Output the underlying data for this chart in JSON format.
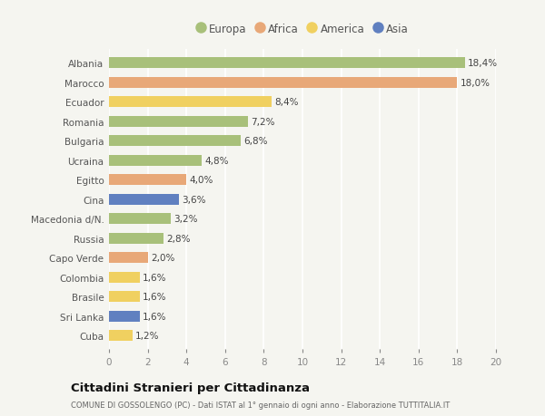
{
  "categories": [
    "Albania",
    "Marocco",
    "Ecuador",
    "Romania",
    "Bulgaria",
    "Ucraina",
    "Egitto",
    "Cina",
    "Macedonia d/N.",
    "Russia",
    "Capo Verde",
    "Colombia",
    "Brasile",
    "Sri Lanka",
    "Cuba"
  ],
  "values": [
    18.4,
    18.0,
    8.4,
    7.2,
    6.8,
    4.8,
    4.0,
    3.6,
    3.2,
    2.8,
    2.0,
    1.6,
    1.6,
    1.6,
    1.2
  ],
  "labels": [
    "18,4%",
    "18,0%",
    "8,4%",
    "7,2%",
    "6,8%",
    "4,8%",
    "4,0%",
    "3,6%",
    "3,2%",
    "2,8%",
    "2,0%",
    "1,6%",
    "1,6%",
    "1,6%",
    "1,2%"
  ],
  "regions": [
    "Europa",
    "Africa",
    "America",
    "Europa",
    "Europa",
    "Europa",
    "Africa",
    "Asia",
    "Europa",
    "Europa",
    "Africa",
    "America",
    "America",
    "Asia",
    "America"
  ],
  "colors": {
    "Europa": "#a8c07a",
    "Africa": "#e8a878",
    "America": "#f0d060",
    "Asia": "#6080c0"
  },
  "legend_order": [
    "Europa",
    "Africa",
    "America",
    "Asia"
  ],
  "title": "Cittadini Stranieri per Cittadinanza",
  "subtitle": "COMUNE DI GOSSOLENGO (PC) - Dati ISTAT al 1° gennaio di ogni anno - Elaborazione TUTTITALIA.IT",
  "xlim": [
    0,
    20
  ],
  "xticks": [
    0,
    2,
    4,
    6,
    8,
    10,
    12,
    14,
    16,
    18,
    20
  ],
  "background_color": "#f5f5f0",
  "grid_color": "#ffffff",
  "bar_height": 0.55
}
